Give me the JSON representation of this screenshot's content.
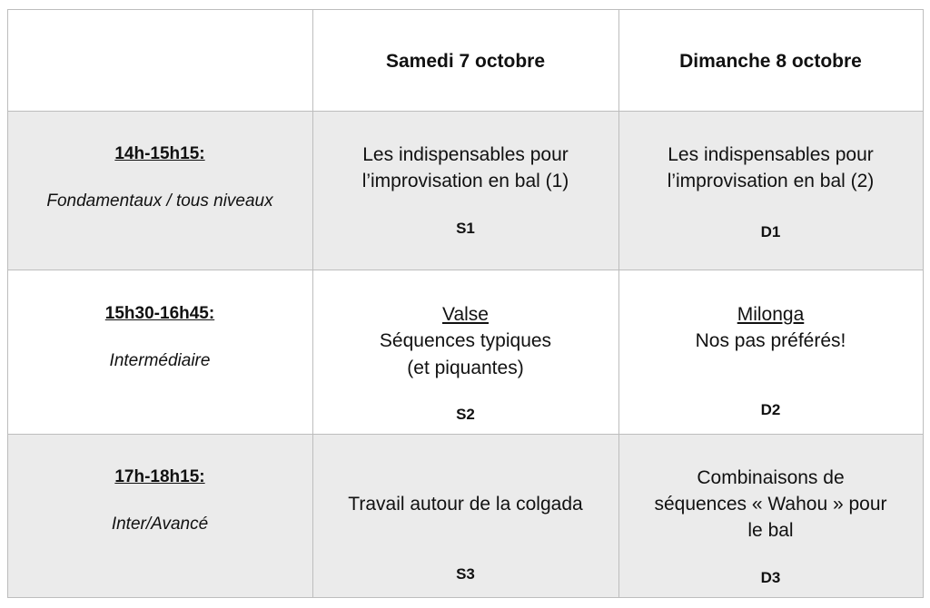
{
  "table": {
    "header": [
      "Samedi 7 octobre",
      "Dimanche 8 octobre"
    ],
    "rows": [
      {
        "time": "14h-15h15:",
        "level": "Fondamentaux / tous niveaux",
        "saturday": {
          "lines": [
            "Les indispensables pour",
            "l’improvisation en bal (1)"
          ],
          "code": "S1"
        },
        "sunday": {
          "lines": [
            "Les indispensables pour",
            "l’improvisation en bal (2)"
          ],
          "code": "D1"
        }
      },
      {
        "time": "15h30-16h45:",
        "level": "Intermédiaire",
        "saturday": {
          "heading": "Valse",
          "lines": [
            "Séquences typiques",
            "(et piquantes)"
          ],
          "code": "S2"
        },
        "sunday": {
          "heading": "Milonga",
          "lines": [
            "Nos pas préférés!"
          ],
          "code": "D2"
        }
      },
      {
        "time": "17h-18h15:",
        "level": "Inter/Avancé",
        "saturday": {
          "lines": [
            "Travail autour de la colgada"
          ],
          "code": "S3"
        },
        "sunday": {
          "lines": [
            "Combinaisons de",
            "séquences « Wahou » pour",
            "le bal"
          ],
          "code": "D3"
        }
      }
    ]
  }
}
